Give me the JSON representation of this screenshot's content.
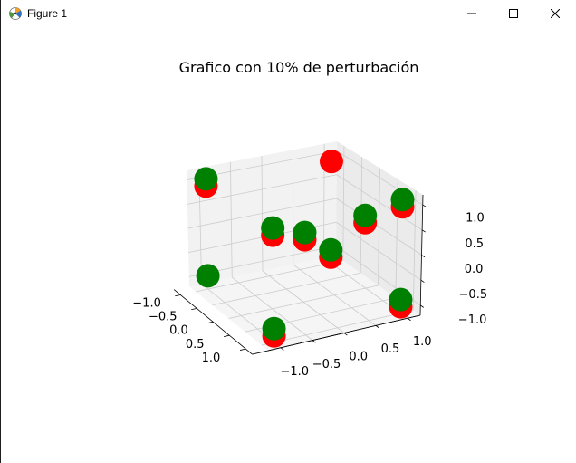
{
  "window": {
    "title": "Figure 1",
    "icons": {
      "app": "matplotlib-figure-icon",
      "minimize": "minimize-icon",
      "maximize": "maximize-icon",
      "close": "close-icon"
    }
  },
  "chart_data": {
    "type": "scatter",
    "projection": "3d",
    "title": "Grafico con 10% de perturbación",
    "xlabel": "",
    "ylabel": "",
    "zlabel": "",
    "x_ticks": [
      "−1.0",
      "−0.5",
      "0.0",
      "0.5",
      "1.0"
    ],
    "y_ticks": [
      "−1.0",
      "−0.5",
      "0.0",
      "0.5",
      "1.0"
    ],
    "z_ticks": [
      "−1.0",
      "−0.5",
      "0.0",
      "0.5",
      "1.0"
    ],
    "xlim": [
      -1.2,
      1.2
    ],
    "ylim": [
      -1.2,
      1.2
    ],
    "zlim": [
      -1.2,
      1.2
    ],
    "grid": true,
    "colors": {
      "series_a": "#ff0000",
      "series_b": "#008000",
      "pane": "#f2f2f2",
      "grid": "#cccccc"
    },
    "series": [
      {
        "color": "#ff0000",
        "points": [
          [
            1.0,
            -1.0,
            -1.0
          ],
          [
            1.0,
            -1.0,
            1.0
          ],
          [
            1.0,
            1.0,
            -1.0
          ],
          [
            1.0,
            1.0,
            1.0
          ],
          [
            -1.0,
            1.0,
            -1.0
          ],
          [
            -1.0,
            1.0,
            1.0
          ],
          [
            -1.0,
            -1.0,
            1.0
          ],
          [
            -0.05,
            0.05,
            0.1
          ],
          [
            0.05,
            0.95,
            0.25
          ]
        ]
      },
      {
        "color": "#008000",
        "points": [
          [
            1.0,
            -1.0,
            -1.0
          ],
          [
            1.0,
            -1.0,
            1.0
          ],
          [
            1.0,
            1.0,
            -1.0
          ],
          [
            1.0,
            1.0,
            1.0
          ],
          [
            -1.0,
            1.0,
            -1.0
          ],
          [
            -1.0,
            -1.0,
            1.0
          ],
          [
            -1.0,
            -1.0,
            -1.0
          ],
          [
            -0.05,
            0.05,
            0.1
          ],
          [
            0.05,
            0.95,
            0.25
          ]
        ]
      }
    ]
  }
}
